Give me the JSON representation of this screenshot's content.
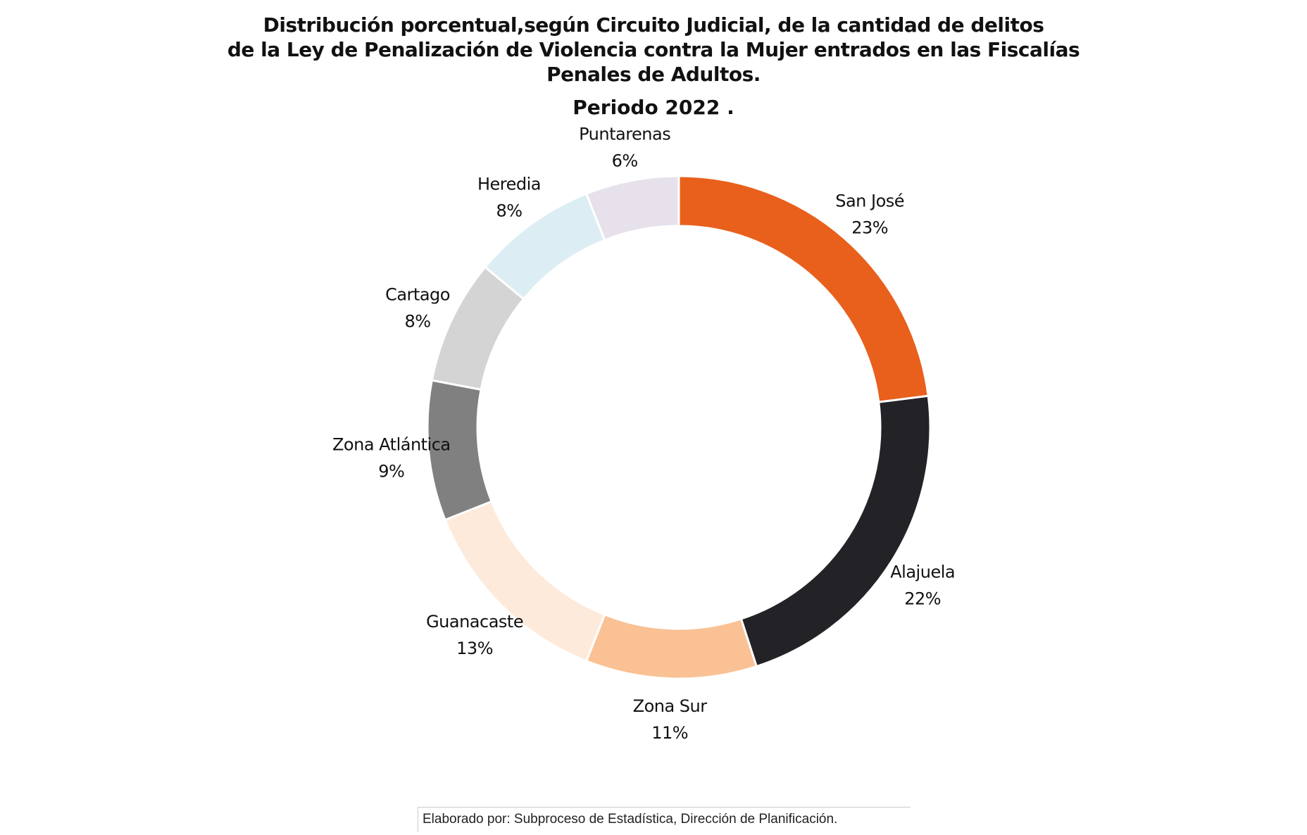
{
  "chart_data": {
    "type": "pie",
    "variant": "donut",
    "title": "Distribución porcentual,según Circuito Judicial, de la cantidad de delitos de la Ley de Penalización de Violencia contra la Mujer entrados en las Fiscalías Penales de Adultos.",
    "title_lines": [
      "Distribución porcentual,según Circuito Judicial, de la cantidad de delitos",
      "de la Ley de Penalización de Violencia contra la Mujer entrados en las Fiscalías",
      "Penales de Adultos."
    ],
    "subtitle": "Periodo 2022 .",
    "unit": "%",
    "slices": [
      {
        "label": "San José",
        "value": 23,
        "display": "23%",
        "color": "#E8601C"
      },
      {
        "label": "Alajuela",
        "value": 22,
        "display": "22%",
        "color": "#232327"
      },
      {
        "label": "Zona Sur",
        "value": 11,
        "display": "11%",
        "color": "#F9C194"
      },
      {
        "label": "Guanacaste",
        "value": 13,
        "display": "13%",
        "color": "#FDEADB"
      },
      {
        "label": "Zona Atlántica",
        "value": 9,
        "display": "9%",
        "color": "#808080"
      },
      {
        "label": "Cartago",
        "value": 8,
        "display": "8%",
        "color": "#D4D4D4"
      },
      {
        "label": "Heredia",
        "value": 8,
        "display": "8%",
        "color": "#DCEEF4"
      },
      {
        "label": "Puntarenas",
        "value": 6,
        "display": "6%",
        "color": "#E7E1EC"
      }
    ],
    "start": "top",
    "direction": "clockwise",
    "legend": "none"
  },
  "footer": {
    "text": "Elaborado por: Subproceso de Estadística, Dirección de Planificación."
  }
}
